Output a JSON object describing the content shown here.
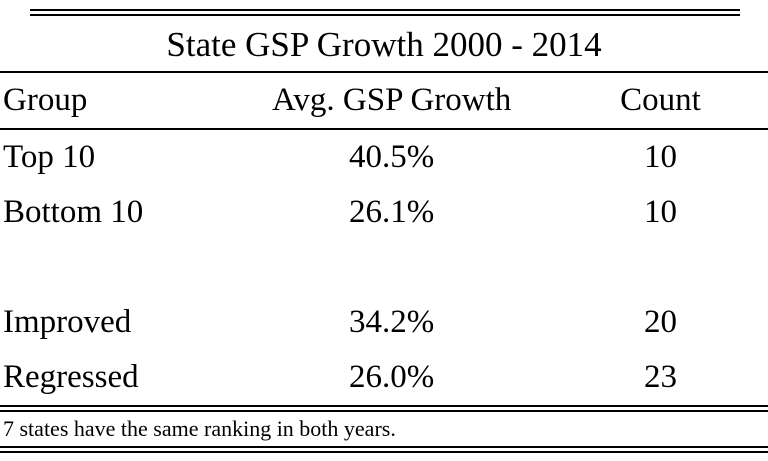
{
  "chart_data": {
    "type": "table",
    "title": "State GSP Growth 2000 - 2014",
    "columns": [
      "Group",
      "Avg. GSP Growth",
      "Count"
    ],
    "rows": [
      [
        "Top 10",
        "40.5%",
        "10"
      ],
      [
        "Bottom 10",
        "26.1%",
        "10"
      ],
      [
        "Improved",
        "34.2%",
        "20"
      ],
      [
        "Regressed",
        "26.0%",
        "23"
      ]
    ],
    "numeric": {
      "avg_gsp_growth_pct": [
        40.5,
        26.1,
        34.2,
        26.0
      ],
      "count": [
        10,
        10,
        20,
        23
      ]
    },
    "row_groups": [
      [
        "Top 10",
        "Bottom 10"
      ],
      [
        "Improved",
        "Regressed"
      ]
    ],
    "note": "7 states have the same ranking in both years.",
    "layout": {
      "note_position": "below-table",
      "rules": "double rule at top, above note, and at bottom; single rules under title and header",
      "column_alignment": [
        "left",
        "center",
        "center"
      ]
    }
  },
  "colors": {
    "text": "#000000",
    "background": "#ffffff",
    "rule": "#000000"
  }
}
